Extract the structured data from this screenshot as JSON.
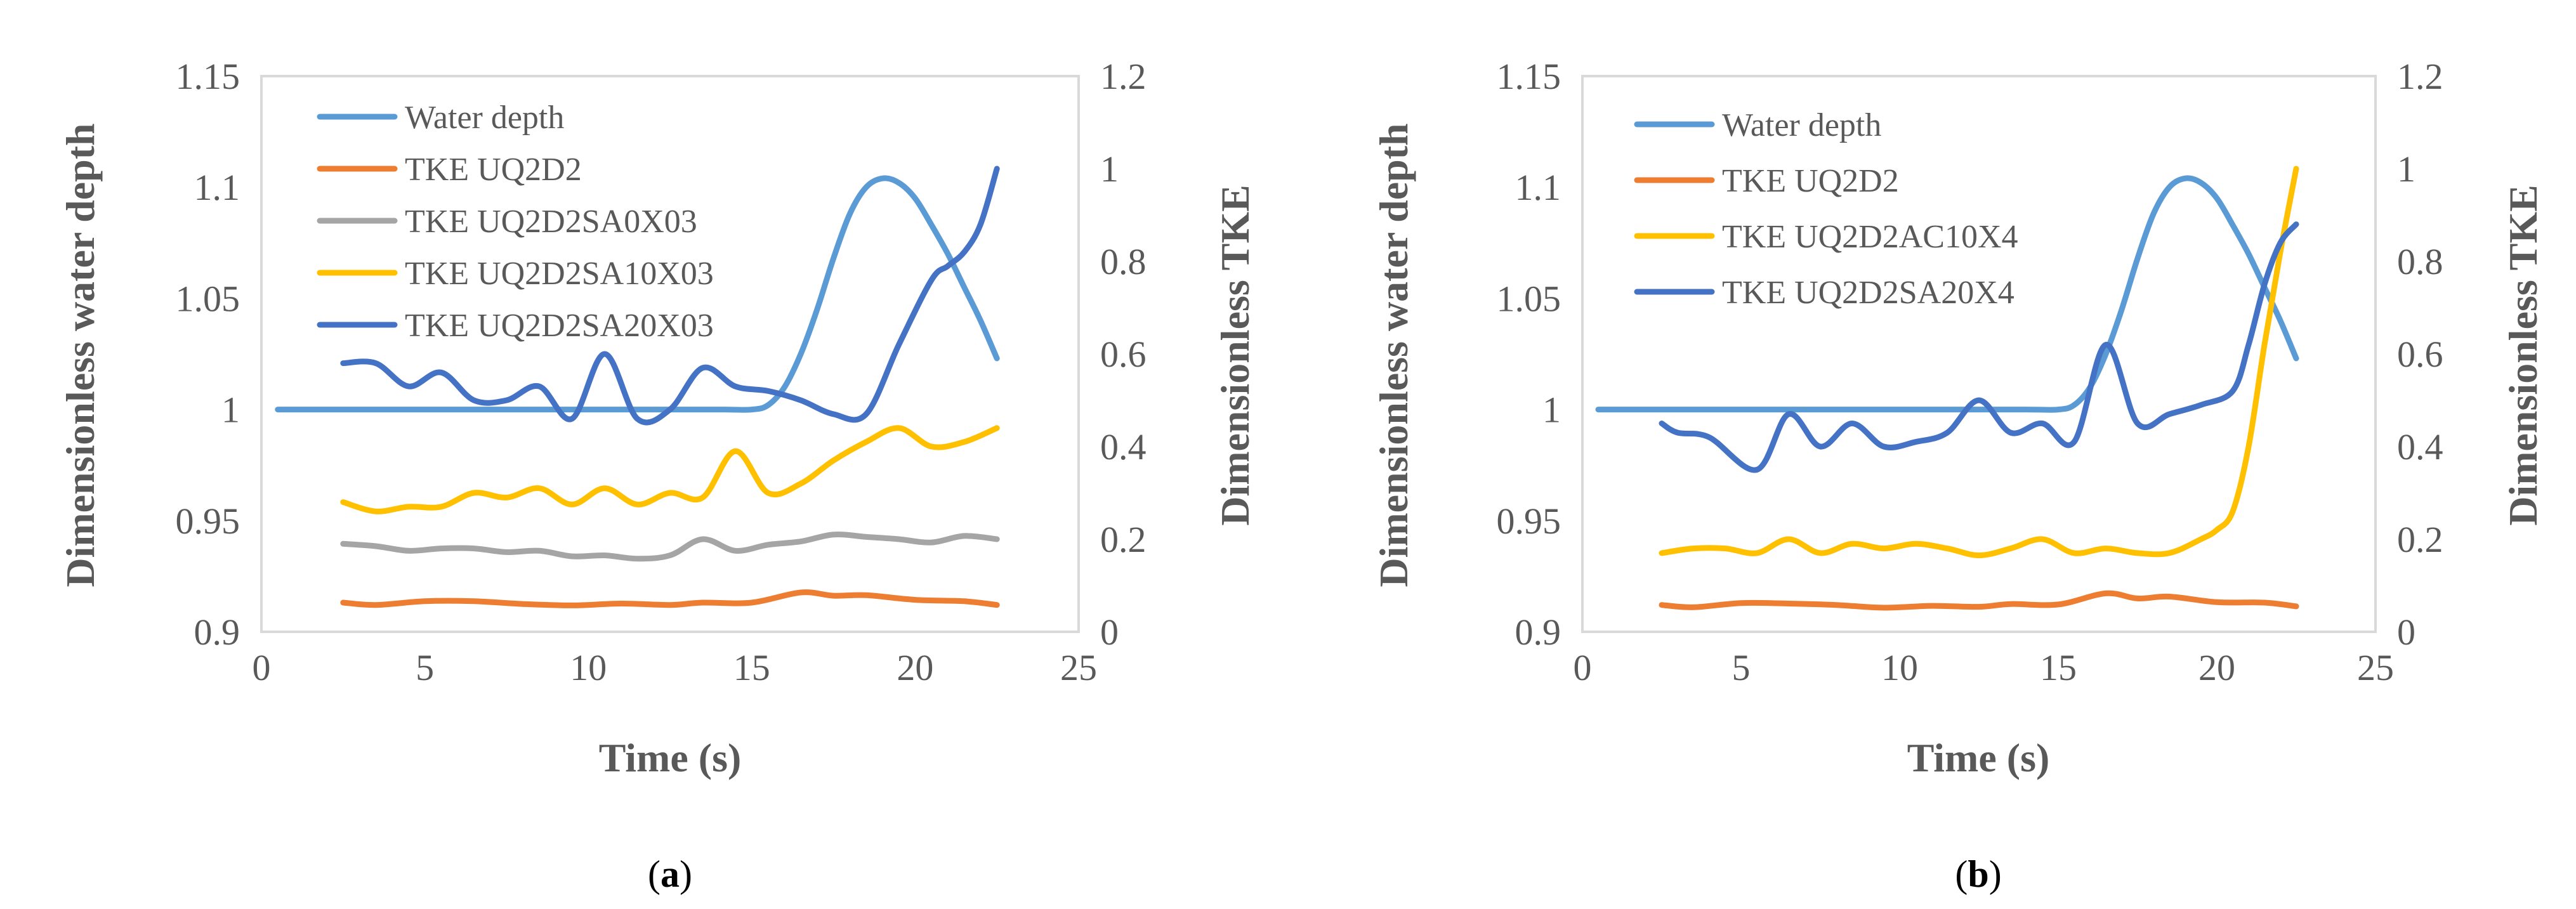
{
  "chart_data": [
    {
      "type": "line",
      "caption": "a",
      "xlabel": "Time (s)",
      "ylabel_left": "Dimensionless water depth",
      "ylabel_right": "Dimensionless TKE",
      "xlim": [
        0,
        25
      ],
      "xticks": [
        0,
        5,
        10,
        15,
        20,
        25
      ],
      "ylim_left": [
        0.9,
        1.15
      ],
      "yticks_left": [
        0.9,
        0.95,
        1,
        1.05,
        1.1,
        1.15
      ],
      "ytick_labels_left": [
        "0.9",
        "0.95",
        "1",
        "1.05",
        "1.1",
        "1.15"
      ],
      "ylim_right": [
        0,
        1.2
      ],
      "yticks_right": [
        0,
        0.2,
        0.4,
        0.6,
        0.8,
        1,
        1.2
      ],
      "ytick_labels_right": [
        "0",
        "0.2",
        "0.4",
        "0.6",
        "0.8",
        "1",
        "1.2"
      ],
      "grid": false,
      "legend_position": "top-left",
      "series": [
        {
          "name": "Water depth",
          "axis": "left",
          "color": "#5B9BD5",
          "x": [
            0.5,
            2,
            4,
            6,
            8,
            10,
            12,
            14,
            15,
            15.5,
            16,
            16.5,
            17,
            17.5,
            18,
            18.5,
            19,
            19.5,
            20,
            20.5,
            21,
            21.5,
            22,
            22.5
          ],
          "y": [
            1.0,
            1.0,
            1.0,
            1.0,
            1.0,
            1.0,
            1.0,
            1.0,
            1.0,
            1.002,
            1.01,
            1.025,
            1.045,
            1.068,
            1.088,
            1.1,
            1.104,
            1.102,
            1.095,
            1.083,
            1.07,
            1.055,
            1.04,
            1.023
          ]
        },
        {
          "name": "TKE UQ2D2",
          "axis": "right",
          "color": "#ED7D31",
          "x": [
            2.5,
            3.5,
            5,
            6.5,
            8,
            9.5,
            11,
            12.5,
            13.5,
            15,
            16.5,
            17.5,
            18.5,
            20,
            21.5,
            22.5
          ],
          "y": [
            0.063,
            0.058,
            0.066,
            0.066,
            0.06,
            0.057,
            0.061,
            0.058,
            0.063,
            0.063,
            0.085,
            0.078,
            0.079,
            0.069,
            0.066,
            0.058
          ]
        },
        {
          "name": "TKE UQ2D2SA0X03",
          "axis": "right",
          "color": "#A5A5A5",
          "x": [
            2.5,
            3.5,
            4.5,
            5.5,
            6.5,
            7.5,
            8.5,
            9.5,
            10.5,
            11.5,
            12.5,
            13.5,
            14.5,
            15.5,
            16.5,
            17.5,
            18.5,
            19.5,
            20.5,
            21.5,
            22.5
          ],
          "y": [
            0.19,
            0.185,
            0.175,
            0.18,
            0.18,
            0.172,
            0.175,
            0.163,
            0.165,
            0.158,
            0.165,
            0.2,
            0.175,
            0.188,
            0.195,
            0.21,
            0.205,
            0.2,
            0.193,
            0.207,
            0.2
          ]
        },
        {
          "name": "TKE UQ2D2SA10X03",
          "axis": "right",
          "color": "#FFC000",
          "x": [
            2.5,
            3.5,
            4.5,
            5.5,
            6.5,
            7.5,
            8.5,
            9.5,
            10.5,
            11.5,
            12.5,
            13.5,
            14.5,
            15.5,
            16.5,
            17.5,
            18.5,
            19.5,
            20.5,
            21.5,
            22.5
          ],
          "y": [
            0.28,
            0.26,
            0.27,
            0.27,
            0.3,
            0.29,
            0.31,
            0.275,
            0.31,
            0.275,
            0.3,
            0.29,
            0.39,
            0.3,
            0.32,
            0.37,
            0.41,
            0.44,
            0.4,
            0.41,
            0.44
          ]
        },
        {
          "name": "TKE UQ2D2SA20X03",
          "axis": "right",
          "color": "#4472C4",
          "x": [
            2.5,
            3.5,
            4.5,
            5.5,
            6.5,
            7.5,
            8.5,
            9.5,
            10.5,
            11.5,
            12.5,
            13.5,
            14.5,
            15.5,
            16.5,
            17.5,
            18.5,
            19.5,
            20.5,
            21,
            21.5,
            22,
            22.5
          ],
          "y": [
            0.58,
            0.58,
            0.53,
            0.56,
            0.5,
            0.5,
            0.53,
            0.46,
            0.6,
            0.46,
            0.48,
            0.57,
            0.53,
            0.52,
            0.5,
            0.47,
            0.47,
            0.62,
            0.76,
            0.79,
            0.82,
            0.88,
            1.0
          ]
        }
      ]
    },
    {
      "type": "line",
      "caption": "b",
      "xlabel": "Time (s)",
      "ylabel_left": "Dimensionless water depth",
      "ylabel_right": "Dimensionless TKE",
      "xlim": [
        0,
        25
      ],
      "xticks": [
        0,
        5,
        10,
        15,
        20,
        25
      ],
      "ylim_left": [
        0.9,
        1.15
      ],
      "yticks_left": [
        0.9,
        0.95,
        1,
        1.05,
        1.1,
        1.15
      ],
      "ytick_labels_left": [
        "0.9",
        "0.95",
        "1",
        "1.05",
        "1.1",
        "1.15"
      ],
      "ylim_right": [
        0,
        1.2
      ],
      "yticks_right": [
        0,
        0.2,
        0.4,
        0.6,
        0.8,
        1,
        1.2
      ],
      "ytick_labels_right": [
        "0",
        "0.2",
        "0.4",
        "0.6",
        "0.8",
        "1",
        "1.2"
      ],
      "grid": false,
      "legend_position": "top-left",
      "series": [
        {
          "name": "Water depth",
          "axis": "left",
          "color": "#5B9BD5",
          "x": [
            0.5,
            2,
            4,
            6,
            8,
            10,
            12,
            14,
            15,
            15.5,
            16,
            16.5,
            17,
            17.5,
            18,
            18.5,
            19,
            19.5,
            20,
            20.5,
            21,
            21.5,
            22,
            22.5
          ],
          "y": [
            1.0,
            1.0,
            1.0,
            1.0,
            1.0,
            1.0,
            1.0,
            1.0,
            1.0,
            1.002,
            1.01,
            1.025,
            1.045,
            1.068,
            1.088,
            1.1,
            1.104,
            1.102,
            1.095,
            1.083,
            1.07,
            1.055,
            1.04,
            1.023
          ]
        },
        {
          "name": "TKE UQ2D2",
          "axis": "right",
          "color": "#ED7D31",
          "x": [
            2.5,
            3.5,
            5,
            6.5,
            8,
            9.5,
            11,
            12.5,
            13.5,
            15,
            16.5,
            17.5,
            18.5,
            20,
            21.5,
            22.5
          ],
          "y": [
            0.058,
            0.053,
            0.062,
            0.061,
            0.058,
            0.052,
            0.056,
            0.054,
            0.06,
            0.059,
            0.083,
            0.072,
            0.076,
            0.064,
            0.063,
            0.055
          ]
        },
        {
          "name": "TKE UQ2D2AC10X4",
          "axis": "right",
          "color": "#FFC000",
          "x": [
            2.5,
            3.5,
            4.5,
            5.5,
            6.5,
            7.5,
            8.5,
            9.5,
            10.5,
            11.5,
            12.5,
            13.5,
            14.5,
            15.5,
            16.5,
            17.5,
            18.5,
            19.5,
            20,
            20.5,
            21,
            21.5,
            22,
            22.5
          ],
          "y": [
            0.17,
            0.18,
            0.18,
            0.17,
            0.2,
            0.17,
            0.19,
            0.18,
            0.19,
            0.18,
            0.165,
            0.18,
            0.2,
            0.17,
            0.18,
            0.17,
            0.17,
            0.2,
            0.22,
            0.26,
            0.4,
            0.62,
            0.82,
            1.0
          ]
        },
        {
          "name": "TKE UQ2D2SA20X4",
          "axis": "right",
          "color": "#4472C4",
          "x": [
            2.5,
            3,
            4,
            5.5,
            6.5,
            7.5,
            8.5,
            9.5,
            10.5,
            11.5,
            12.5,
            13.5,
            14.5,
            15.5,
            16.5,
            17.5,
            18.5,
            19.5,
            20.5,
            21,
            21.5,
            22,
            22.5
          ],
          "y": [
            0.45,
            0.43,
            0.42,
            0.35,
            0.47,
            0.4,
            0.45,
            0.4,
            0.41,
            0.43,
            0.5,
            0.43,
            0.45,
            0.41,
            0.62,
            0.45,
            0.47,
            0.49,
            0.52,
            0.62,
            0.75,
            0.84,
            0.88
          ]
        }
      ]
    }
  ]
}
